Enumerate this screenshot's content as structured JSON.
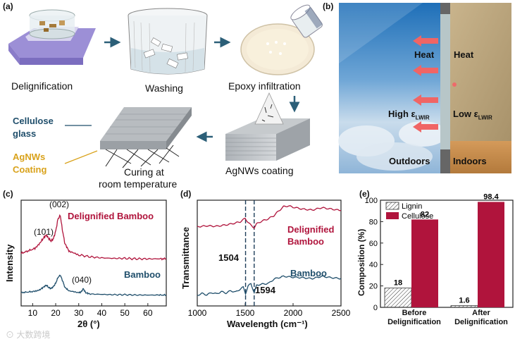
{
  "panels": {
    "a": {
      "label": "(a)",
      "steps": [
        "Delignification",
        "Washing",
        "Epoxy infiltration",
        "AgNWs coating",
        "Curing at",
        "room temperature"
      ],
      "callouts": {
        "cellulose_line1": "Cellulose",
        "cellulose_line2": "glass",
        "agnws_line1": "AgNWs",
        "agnws_line2": "Coating"
      },
      "colors": {
        "cellulose": "#1f4e6b",
        "agnws": "#d9a21b",
        "arrow": "#2c5f78"
      }
    },
    "b": {
      "label": "(b)",
      "heat_out": "Heat",
      "heat_in": "Heat",
      "high_e": "High ε",
      "low_e": "Low ε",
      "sub": "LWIR",
      "outdoors": "Outdoors",
      "indoors": "Indoors"
    },
    "c": {
      "label": "(c)"
    },
    "d": {
      "label": "(d)"
    },
    "e": {
      "label": "(e)"
    }
  },
  "chart_data": [
    {
      "panel": "c",
      "type": "line",
      "xlabel": "2θ (°)",
      "ylabel": "Intensity",
      "xlim": [
        5,
        68
      ],
      "xticks": [
        10,
        20,
        30,
        40,
        50,
        60
      ],
      "series": [
        {
          "name": "Delignified Bamboo",
          "color": "#b0143c",
          "x": [
            5,
            8,
            11,
            13,
            15,
            16,
            17,
            18,
            19,
            20,
            21,
            22,
            23,
            24,
            26,
            30,
            35,
            40,
            45,
            50,
            55,
            60,
            65,
            68
          ],
          "y": [
            0.15,
            0.2,
            0.25,
            0.35,
            0.48,
            0.52,
            0.45,
            0.4,
            0.45,
            0.6,
            0.85,
            0.92,
            0.6,
            0.35,
            0.18,
            0.12,
            0.08,
            0.06,
            0.05,
            0.05,
            0.04,
            0.04,
            0.04,
            0.04
          ]
        },
        {
          "name": "Bamboo",
          "color": "#1f4e6b",
          "x": [
            5,
            8,
            11,
            13,
            15,
            16,
            17,
            18,
            19,
            20,
            21,
            22,
            23,
            24,
            26,
            30,
            31,
            32,
            33,
            35,
            40,
            45,
            50,
            55,
            60,
            65,
            68
          ],
          "y": [
            0.1,
            0.12,
            0.14,
            0.18,
            0.28,
            0.32,
            0.25,
            0.22,
            0.28,
            0.38,
            0.55,
            0.62,
            0.45,
            0.26,
            0.14,
            0.1,
            0.12,
            0.22,
            0.1,
            0.06,
            0.05,
            0.04,
            0.04,
            0.03,
            0.03,
            0.03,
            0.03
          ]
        }
      ],
      "annotations": [
        "(002)",
        "(101)",
        "(040)"
      ]
    },
    {
      "panel": "d",
      "type": "line",
      "xlabel": "Wavelength (cm⁻¹)",
      "ylabel": "Transmittance",
      "xlim": [
        1000,
        2500
      ],
      "xticks": [
        1000,
        1500,
        2000,
        2500
      ],
      "markers": [
        1504,
        1594
      ],
      "series": [
        {
          "name": "Delignified Bamboo",
          "color": "#b0143c",
          "x": [
            1000,
            1100,
            1200,
            1300,
            1400,
            1450,
            1500,
            1530,
            1560,
            1594,
            1620,
            1650,
            1700,
            1750,
            1800,
            1850,
            1900,
            1950,
            2000,
            2100,
            2200,
            2300,
            2400,
            2500
          ],
          "y": [
            0.52,
            0.54,
            0.53,
            0.56,
            0.6,
            0.63,
            0.7,
            0.62,
            0.55,
            0.5,
            0.58,
            0.62,
            0.66,
            0.7,
            0.76,
            0.86,
            0.95,
            0.97,
            0.94,
            0.9,
            0.88,
            0.93,
            0.9,
            0.87
          ]
        },
        {
          "name": "Bamboo",
          "color": "#1f4e6b",
          "x": [
            1000,
            1050,
            1100,
            1150,
            1200,
            1250,
            1300,
            1350,
            1400,
            1450,
            1480,
            1504,
            1530,
            1560,
            1594,
            1620,
            1650,
            1700,
            1750,
            1800,
            1900,
            2000,
            2100,
            2200,
            2300,
            2400,
            2500
          ],
          "y": [
            0.08,
            0.12,
            0.09,
            0.14,
            0.11,
            0.16,
            0.13,
            0.18,
            0.15,
            0.22,
            0.26,
            0.12,
            0.28,
            0.34,
            0.14,
            0.3,
            0.32,
            0.33,
            0.35,
            0.44,
            0.5,
            0.48,
            0.47,
            0.45,
            0.5,
            0.47,
            0.45
          ]
        }
      ],
      "annotations": [
        "1504",
        "1594"
      ]
    },
    {
      "panel": "e",
      "type": "bar",
      "ylabel": "Composition (%)",
      "ylim": [
        0,
        100
      ],
      "yticks": [
        0,
        20,
        40,
        60,
        80,
        100
      ],
      "categories": [
        "Before\nDelignification",
        "After\nDelignification"
      ],
      "series": [
        {
          "name": "Lignin",
          "values": [
            18,
            1.6
          ],
          "color": "#ffffff"
        },
        {
          "name": "Cellulose",
          "values": [
            82,
            98.4
          ],
          "color": "#b0143c"
        }
      ],
      "legend": "top-left"
    }
  ],
  "watermark": "大数跨境"
}
